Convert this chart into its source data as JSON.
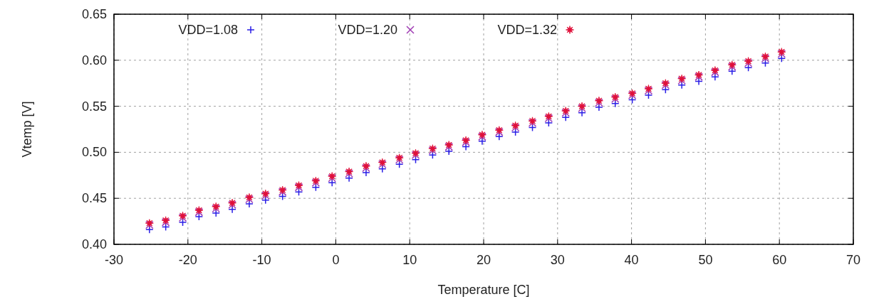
{
  "chart_data": {
    "type": "scatter",
    "xlabel": "Temperature [C]",
    "ylabel": "Vtemp [V]",
    "x": [
      -25.2,
      -23.0,
      -20.7,
      -18.5,
      -16.2,
      -14.0,
      -11.7,
      -9.5,
      -7.2,
      -5.0,
      -2.7,
      -0.5,
      1.8,
      4.1,
      6.3,
      8.6,
      10.8,
      13.1,
      15.3,
      17.6,
      19.8,
      22.1,
      24.3,
      26.6,
      28.8,
      31.1,
      33.3,
      35.6,
      37.8,
      40.1,
      42.3,
      44.6,
      46.8,
      49.1,
      51.3,
      53.6,
      55.8,
      58.1,
      60.3
    ],
    "series": [
      {
        "name": "VDD=1.08",
        "color": "#2a1ee6",
        "marker": "plus",
        "values": [
          0.416,
          0.419,
          0.424,
          0.43,
          0.434,
          0.438,
          0.444,
          0.448,
          0.452,
          0.457,
          0.462,
          0.467,
          0.472,
          0.478,
          0.482,
          0.487,
          0.492,
          0.497,
          0.501,
          0.506,
          0.512,
          0.517,
          0.522,
          0.527,
          0.532,
          0.538,
          0.543,
          0.549,
          0.553,
          0.557,
          0.562,
          0.568,
          0.573,
          0.577,
          0.582,
          0.588,
          0.592,
          0.597,
          0.602
        ]
      },
      {
        "name": "VDD=1.20",
        "color": "#a03cb4",
        "marker": "cross",
        "values": [
          0.421,
          0.424,
          0.429,
          0.435,
          0.439,
          0.443,
          0.449,
          0.453,
          0.457,
          0.462,
          0.467,
          0.472,
          0.477,
          0.483,
          0.487,
          0.492,
          0.497,
          0.502,
          0.506,
          0.511,
          0.517,
          0.522,
          0.527,
          0.532,
          0.537,
          0.543,
          0.548,
          0.554,
          0.558,
          0.562,
          0.567,
          0.573,
          0.578,
          0.582,
          0.587,
          0.593,
          0.597,
          0.602,
          0.607
        ]
      },
      {
        "name": "VDD=1.32",
        "color": "#e0103a",
        "marker": "star",
        "values": [
          0.423,
          0.426,
          0.431,
          0.437,
          0.441,
          0.445,
          0.451,
          0.455,
          0.459,
          0.464,
          0.469,
          0.474,
          0.479,
          0.485,
          0.489,
          0.494,
          0.499,
          0.504,
          0.508,
          0.513,
          0.519,
          0.524,
          0.529,
          0.534,
          0.539,
          0.545,
          0.55,
          0.556,
          0.56,
          0.564,
          0.569,
          0.575,
          0.58,
          0.584,
          0.589,
          0.595,
          0.599,
          0.604,
          0.609
        ]
      }
    ],
    "xlim": [
      -30,
      70
    ],
    "xticks": [
      -30,
      -20,
      -10,
      0,
      10,
      20,
      30,
      40,
      50,
      60,
      70
    ],
    "ylim": [
      0.4,
      0.65
    ],
    "yticks": [
      {
        "value": 0.4,
        "label": "0.40"
      },
      {
        "value": 0.45,
        "label": "0.45"
      },
      {
        "value": 0.5,
        "label": "0.50"
      },
      {
        "value": 0.55,
        "label": "0.55"
      },
      {
        "value": 0.6,
        "label": "0.60"
      },
      {
        "value": 0.65,
        "label": "0.65"
      }
    ],
    "grid": true,
    "legend": "top left"
  }
}
